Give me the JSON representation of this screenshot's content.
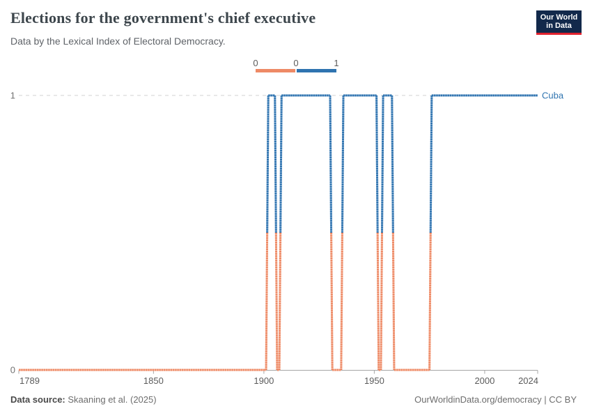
{
  "header": {
    "title": "Elections for the government's chief executive",
    "subtitle": "Data by the Lexical Index of Electoral Democracy.",
    "logo": {
      "line1": "Our World",
      "line2": "in Data",
      "bg": "#12294b",
      "accent": "#e0222e"
    }
  },
  "legend": {
    "labels": [
      "0",
      "0",
      "1"
    ],
    "colors": {
      "zero": "#ee8a66",
      "one": "#2f74b0"
    }
  },
  "chart_data": {
    "type": "line",
    "title": "Elections for the government's chief executive",
    "entity": "Cuba",
    "x_ticks": [
      "1789",
      "1850",
      "1900",
      "1950",
      "2000",
      "2024"
    ],
    "y_ticks": [
      {
        "label": "0",
        "value": 0
      },
      {
        "label": "1",
        "value": 1
      }
    ],
    "x_range": [
      1789,
      2024
    ],
    "ylim": [
      0,
      1
    ],
    "grid": "dashed line at y=1 only",
    "legend_position": "top-center",
    "colors": {
      "zero": "#ee8a66",
      "zero_light": "#f7c3ae",
      "one": "#2f74b0",
      "one_light": "#8cb1d4"
    },
    "series": [
      {
        "name": "Cuba",
        "segments": [
          {
            "from": 1789,
            "to": 1901,
            "value": 0
          },
          {
            "from": 1902,
            "to": 1905,
            "value": 1
          },
          {
            "from": 1906,
            "to": 1907,
            "value": 0
          },
          {
            "from": 1908,
            "to": 1930,
            "value": 1
          },
          {
            "from": 1931,
            "to": 1935,
            "value": 0
          },
          {
            "from": 1936,
            "to": 1951,
            "value": 1
          },
          {
            "from": 1952,
            "to": 1953,
            "value": 0
          },
          {
            "from": 1954,
            "to": 1958,
            "value": 1
          },
          {
            "from": 1959,
            "to": 1975,
            "value": 0
          },
          {
            "from": 1976,
            "to": 2024,
            "value": 1
          }
        ]
      }
    ]
  },
  "footer": {
    "source_label": "Data source:",
    "source": "Skaaning et al. (2025)",
    "credit": "OurWorldinData.org/democracy | CC BY"
  }
}
